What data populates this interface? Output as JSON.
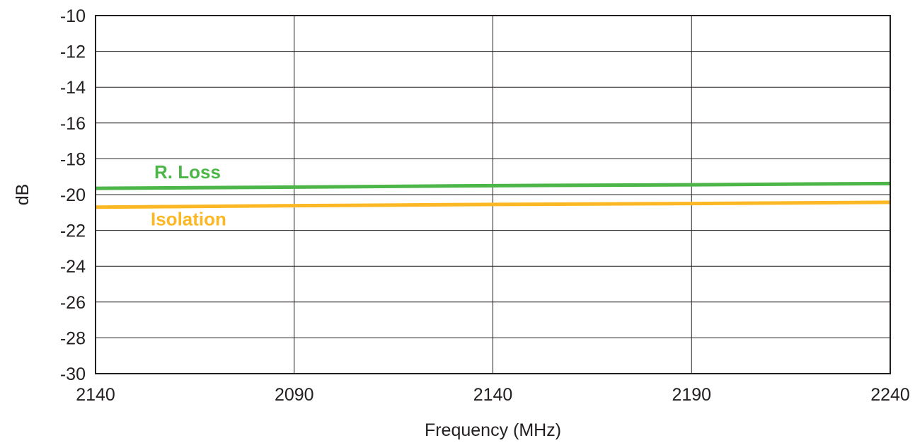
{
  "chart_data": {
    "type": "line",
    "xlabel": "Frequency (MHz)",
    "ylabel": "dB",
    "x_ticks": [
      "2140",
      "2090",
      "2140",
      "2190",
      "2240"
    ],
    "y_ticks": [
      "-10",
      "-12",
      "-14",
      "-16",
      "-18",
      "-20",
      "-22",
      "-24",
      "-26",
      "-28",
      "-30"
    ],
    "ylim": [
      -30,
      -10
    ],
    "grid": true,
    "series": [
      {
        "name": "R. Loss",
        "color": "#4cb648",
        "x": [
          0,
          1,
          2,
          3,
          4
        ],
        "values": [
          -19.65,
          -19.58,
          -19.5,
          -19.45,
          -19.38
        ]
      },
      {
        "name": "Isolation",
        "color": "#fbb824",
        "x": [
          0,
          1,
          2,
          3,
          4
        ],
        "values": [
          -20.7,
          -20.62,
          -20.55,
          -20.5,
          -20.43
        ]
      }
    ]
  }
}
